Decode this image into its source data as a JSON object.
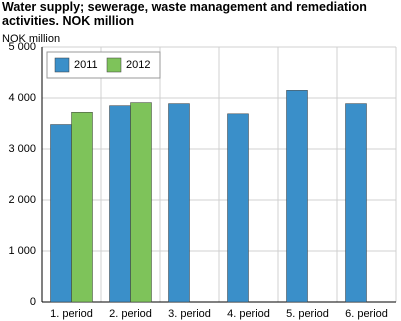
{
  "chart_data": {
    "type": "bar",
    "title": "Water supply; sewerage, waste management and remediation activities. NOK million",
    "y_label": "NOK million",
    "categories": [
      "1. period",
      "2. period",
      "3. period",
      "4. period",
      "5. period",
      "6. period"
    ],
    "series": [
      {
        "name": "2011",
        "color": "#3a8fc9",
        "values": [
          3480,
          3850,
          3890,
          3690,
          4150,
          3890
        ]
      },
      {
        "name": "2012",
        "color": "#7ec35a",
        "values": [
          3720,
          3910,
          null,
          null,
          null,
          null
        ]
      }
    ],
    "ylim": [
      0,
      5000
    ],
    "yticks": [
      0,
      {
        "value": 1000,
        "label": "1 000"
      },
      {
        "value": 2000,
        "label": "2 000"
      },
      {
        "value": 3000,
        "label": "3 000"
      },
      {
        "value": 4000,
        "label": "4 000"
      },
      {
        "value": 5000,
        "label": "5 000"
      }
    ],
    "grid": true,
    "legend": "top-left"
  }
}
